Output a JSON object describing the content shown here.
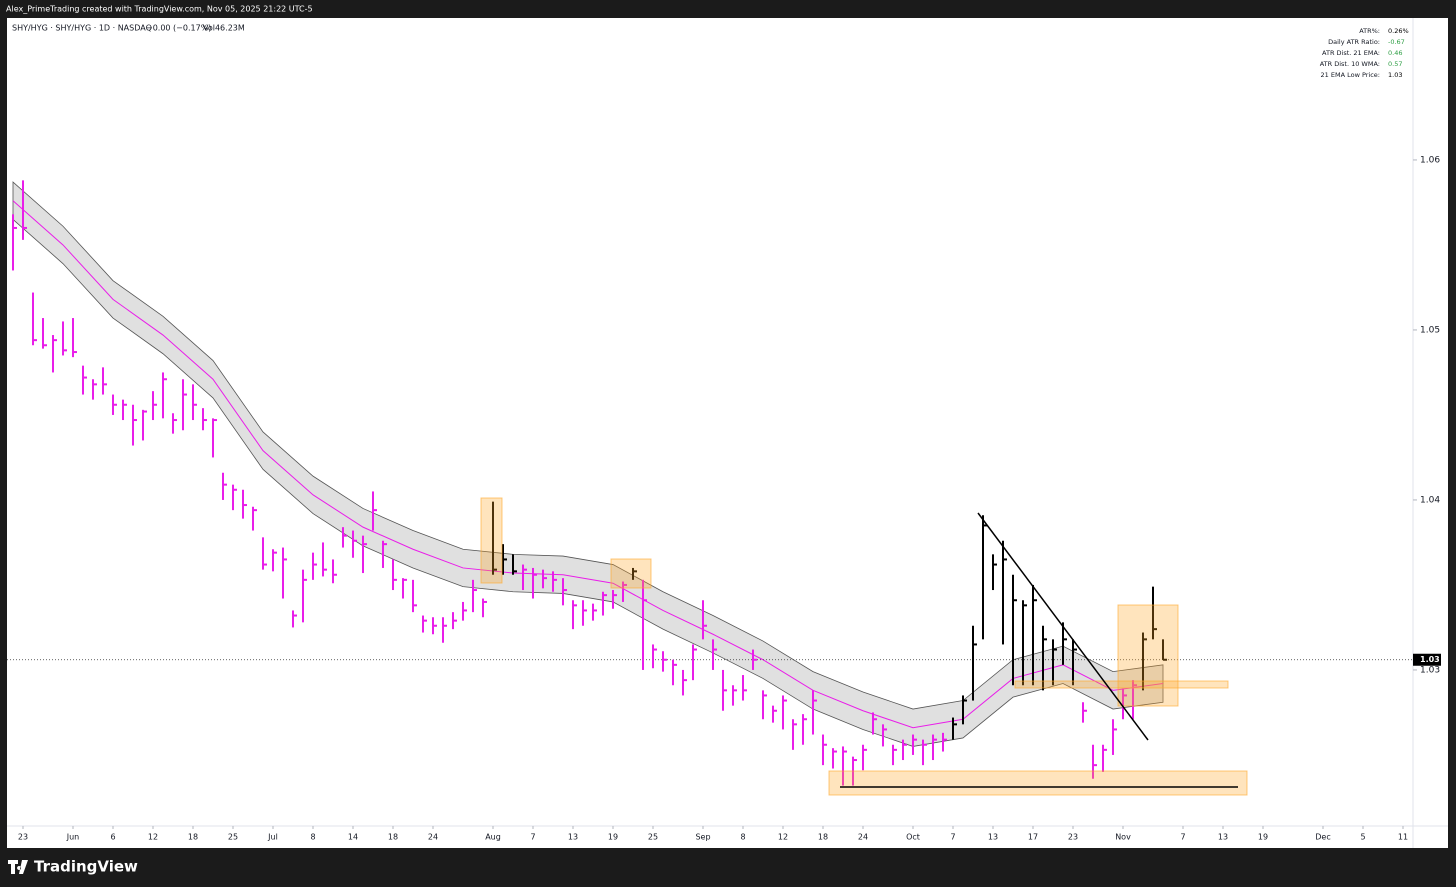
{
  "header": {
    "credit": "Alex_PrimeTrading created with TradingView.com, Nov 05, 2025 21:22 UTC-5"
  },
  "chart_data": {
    "type": "ohlc",
    "title": "SHY/HYG · SHY/HYG · 1D · NASDAQ",
    "change": "−0.00 (−0.17%)",
    "volume": "Vol46.23M",
    "x": [
      0,
      1,
      2,
      3,
      4,
      5,
      6,
      7,
      8,
      9,
      10,
      11,
      12,
      13,
      14,
      15,
      16,
      17,
      18,
      19,
      20,
      21,
      22,
      23,
      24,
      25,
      26,
      27,
      28,
      29,
      30,
      31,
      32,
      33,
      34,
      35,
      36,
      37,
      38,
      39,
      40,
      41,
      42,
      43,
      44,
      45,
      46,
      47,
      48,
      49,
      50,
      51,
      52,
      53,
      54,
      55,
      56,
      57,
      58,
      59,
      60,
      61,
      62,
      63,
      64,
      65,
      66,
      67,
      68,
      69,
      70,
      71,
      72,
      73,
      74,
      75,
      76,
      77,
      78,
      79,
      80,
      81,
      82,
      83,
      84,
      85,
      86,
      87,
      88,
      89,
      90,
      91,
      92,
      93,
      94,
      95,
      96,
      97,
      98,
      99,
      100,
      101,
      102,
      103,
      104,
      105,
      106,
      107,
      108,
      109,
      110,
      111,
      112,
      113,
      114,
      115
    ],
    "high": [
      1.0568,
      1.0588,
      1.0522,
      1.0507,
      1.0497,
      1.0505,
      1.0507,
      1.0479,
      1.0471,
      1.0478,
      1.0462,
      1.0459,
      1.0456,
      1.0453,
      1.0464,
      1.0475,
      1.0451,
      1.0471,
      1.0468,
      1.0454,
      1.0448,
      1.0416,
      1.0409,
      1.0406,
      1.0396,
      1.0378,
      1.0371,
      1.0372,
      1.0335,
      1.0359,
      1.0369,
      1.0375,
      1.0365,
      1.0384,
      1.0382,
      1.0379,
      1.0405,
      1.0376,
      1.0365,
      1.0354,
      1.0353,
      1.0332,
      1.0331,
      1.0331,
      1.0334,
      1.034,
      1.0353,
      1.0342,
      1.0399,
      1.0374,
      1.0368,
      1.0362,
      1.036,
      1.0359,
      1.0358,
      1.0354,
      1.0341,
      1.0341,
      1.0339,
      1.0346,
      1.0347,
      1.0352,
      1.036,
      1.0353,
      1.0315,
      1.0311,
      1.0306,
      1.03,
      1.0315,
      1.0341,
      1.0318,
      1.03,
      1.0291,
      1.0297,
      1.0312,
      1.0288,
      1.0279,
      1.0285,
      1.0271,
      1.0274,
      1.0288,
      1.0262,
      1.0254,
      1.0255,
      1.0249,
      1.0256,
      1.0275,
      1.0268,
      1.0256,
      1.0259,
      1.0262,
      1.0259,
      1.0262,
      1.0263,
      1.0272,
      1.0285,
      1.0326,
      1.0391,
      1.0368,
      1.0376,
      1.0356,
      1.0341,
      1.035,
      1.0326,
      1.0318,
      1.0328,
      1.0318,
      1.0281,
      1.0256,
      1.0256,
      1.0271,
      1.0289,
      1.0294,
      1.0322,
      1.0349,
      1.0318
    ],
    "low": [
      1.0535,
      1.0553,
      1.0491,
      1.0489,
      1.0475,
      1.0485,
      1.0484,
      1.0462,
      1.0459,
      1.0462,
      1.045,
      1.0447,
      1.0432,
      1.0435,
      1.0447,
      1.0448,
      1.0439,
      1.0441,
      1.0447,
      1.0441,
      1.0425,
      1.04,
      1.0394,
      1.0389,
      1.0382,
      1.0359,
      1.0358,
      1.0342,
      1.0325,
      1.0328,
      1.0353,
      1.0355,
      1.0351,
      1.0372,
      1.0366,
      1.0357,
      1.0382,
      1.036,
      1.0347,
      1.0342,
      1.0334,
      1.0322,
      1.0321,
      1.0316,
      1.0324,
      1.0329,
      1.0334,
      1.0331,
      1.0356,
      1.0356,
      1.0356,
      1.0347,
      1.0342,
      1.0348,
      1.0346,
      1.0338,
      1.0324,
      1.0326,
      1.0329,
      1.0332,
      1.0336,
      1.034,
      1.0353,
      1.03,
      1.0301,
      1.0299,
      1.0291,
      1.0285,
      1.0294,
      1.0318,
      1.03,
      1.0276,
      1.0279,
      1.0282,
      1.03,
      1.0271,
      1.0269,
      1.0265,
      1.0253,
      1.0256,
      1.0262,
      1.0244,
      1.0242,
      1.0232,
      1.0232,
      1.0241,
      1.0262,
      1.0255,
      1.0244,
      1.0247,
      1.025,
      1.0244,
      1.0247,
      1.0252,
      1.0259,
      1.0268,
      1.0282,
      1.0318,
      1.0347,
      1.0315,
      1.0291,
      1.0291,
      1.0291,
      1.0288,
      1.0291,
      1.0303,
      1.0291,
      1.0269,
      1.0236,
      1.024,
      1.025,
      1.0271,
      1.0271,
      1.0288,
      1.0318,
      1.0306
    ],
    "close": [
      1.056,
      1.056,
      1.0494,
      1.0491,
      1.0494,
      1.0488,
      1.0487,
      1.0472,
      1.0468,
      1.0468,
      1.0456,
      1.0456,
      1.0447,
      1.0452,
      1.0456,
      1.0471,
      1.0447,
      1.0462,
      1.0456,
      1.0447,
      1.0447,
      1.0409,
      1.0406,
      1.0397,
      1.0394,
      1.0362,
      1.0369,
      1.0365,
      1.0332,
      1.0353,
      1.0362,
      1.0359,
      1.0356,
      1.0379,
      1.0376,
      1.0374,
      1.0394,
      1.0374,
      1.0353,
      1.0353,
      1.0338,
      1.0329,
      1.0326,
      1.0326,
      1.0329,
      1.0335,
      1.0347,
      1.034,
      1.0359,
      1.0365,
      1.0358,
      1.0359,
      1.0356,
      1.0354,
      1.0353,
      1.0347,
      1.0338,
      1.0335,
      1.0335,
      1.0344,
      1.0344,
      1.035,
      1.0358,
      1.0341,
      1.0312,
      1.0306,
      1.0303,
      1.0294,
      1.0312,
      1.0326,
      1.0312,
      1.0288,
      1.0288,
      1.0288,
      1.0306,
      1.0285,
      1.0276,
      1.0282,
      1.0268,
      1.0271,
      1.0282,
      1.0256,
      1.0252,
      1.0252,
      1.0247,
      1.0253,
      1.0271,
      1.0265,
      1.0253,
      1.0256,
      1.0259,
      1.0256,
      1.0259,
      1.0259,
      1.0268,
      1.0282,
      1.0315,
      1.0385,
      1.0362,
      1.0365,
      1.0341,
      1.0338,
      1.0341,
      1.0318,
      1.0312,
      1.0318,
      1.0312,
      1.0276,
      1.0244,
      1.0253,
      1.0265,
      1.0285,
      1.0291,
      1.0318,
      1.0324,
      1.0306
    ],
    "colors": [
      "#e91ee9",
      "#e91ee9",
      "#e91ee9",
      "#e91ee9",
      "#e91ee9",
      "#e91ee9",
      "#e91ee9",
      "#e91ee9",
      "#e91ee9",
      "#e91ee9",
      "#e91ee9",
      "#e91ee9",
      "#e91ee9",
      "#e91ee9",
      "#e91ee9",
      "#e91ee9",
      "#e91ee9",
      "#e91ee9",
      "#e91ee9",
      "#e91ee9",
      "#e91ee9",
      "#e91ee9",
      "#e91ee9",
      "#e91ee9",
      "#e91ee9",
      "#e91ee9",
      "#e91ee9",
      "#e91ee9",
      "#e91ee9",
      "#e91ee9",
      "#e91ee9",
      "#e91ee9",
      "#e91ee9",
      "#e91ee9",
      "#e91ee9",
      "#e91ee9",
      "#e91ee9",
      "#e91ee9",
      "#e91ee9",
      "#e91ee9",
      "#e91ee9",
      "#e91ee9",
      "#e91ee9",
      "#e91ee9",
      "#e91ee9",
      "#e91ee9",
      "#e91ee9",
      "#e91ee9",
      "#000000",
      "#000000",
      "#000000",
      "#e91ee9",
      "#e91ee9",
      "#e91ee9",
      "#e91ee9",
      "#e91ee9",
      "#e91ee9",
      "#e91ee9",
      "#e91ee9",
      "#e91ee9",
      "#e91ee9",
      "#e91ee9",
      "#000000",
      "#e91ee9",
      "#e91ee9",
      "#e91ee9",
      "#e91ee9",
      "#e91ee9",
      "#e91ee9",
      "#e91ee9",
      "#e91ee9",
      "#e91ee9",
      "#e91ee9",
      "#e91ee9",
      "#e91ee9",
      "#e91ee9",
      "#e91ee9",
      "#e91ee9",
      "#e91ee9",
      "#e91ee9",
      "#e91ee9",
      "#e91ee9",
      "#e91ee9",
      "#e91ee9",
      "#e91ee9",
      "#e91ee9",
      "#e91ee9",
      "#e91ee9",
      "#e91ee9",
      "#e91ee9",
      "#e91ee9",
      "#e91ee9",
      "#e91ee9",
      "#e91ee9",
      "#000000",
      "#000000",
      "#000000",
      "#000000",
      "#000000",
      "#000000",
      "#000000",
      "#000000",
      "#000000",
      "#000000",
      "#000000",
      "#000000",
      "#000000",
      "#e91ee9",
      "#e91ee9",
      "#e91ee9",
      "#e91ee9",
      "#e91ee9",
      "#e91ee9",
      "#000000",
      "#000000",
      "#000000"
    ],
    "ema": {
      "x": [
        0,
        5,
        10,
        15,
        20,
        25,
        30,
        35,
        40,
        45,
        50,
        55,
        60,
        65,
        70,
        75,
        80,
        85,
        90,
        95,
        100,
        105,
        110,
        115
      ],
      "values": [
        1.0576,
        1.055,
        1.0518,
        1.0497,
        1.0471,
        1.0429,
        1.0403,
        1.0384,
        1.0371,
        1.036,
        1.0357,
        1.0356,
        1.0351,
        1.0335,
        1.0321,
        1.0306,
        1.0288,
        1.0276,
        1.0266,
        1.0271,
        1.0295,
        1.0303,
        1.0288,
        1.0292
      ],
      "color": "#e91ee9",
      "band": 0.0011,
      "band_color": "#d6d6d6"
    },
    "last_price": {
      "value": 1.0306,
      "label": "1.03"
    },
    "xlim": [
      -0.6,
      140
    ],
    "xticks": [
      {
        "value": 1,
        "label": "23"
      },
      {
        "value": 6,
        "label": "Jun"
      },
      {
        "value": 10,
        "label": "6"
      },
      {
        "value": 14,
        "label": "12"
      },
      {
        "value": 18,
        "label": "18"
      },
      {
        "value": 22,
        "label": "25"
      },
      {
        "value": 26,
        "label": "Jul"
      },
      {
        "value": 30,
        "label": "8"
      },
      {
        "value": 34,
        "label": "14"
      },
      {
        "value": 38,
        "label": "18"
      },
      {
        "value": 42,
        "label": "24"
      },
      {
        "value": 48,
        "label": "Aug"
      },
      {
        "value": 52,
        "label": "7"
      },
      {
        "value": 56,
        "label": "13"
      },
      {
        "value": 60,
        "label": "19"
      },
      {
        "value": 64,
        "label": "25"
      },
      {
        "value": 69,
        "label": "Sep"
      },
      {
        "value": 73,
        "label": "8"
      },
      {
        "value": 77,
        "label": "12"
      },
      {
        "value": 81,
        "label": "18"
      },
      {
        "value": 85,
        "label": "24"
      },
      {
        "value": 90,
        "label": "Oct"
      },
      {
        "value": 94,
        "label": "7"
      },
      {
        "value": 98,
        "label": "13"
      },
      {
        "value": 102,
        "label": "17"
      },
      {
        "value": 106,
        "label": "23"
      },
      {
        "value": 111,
        "label": "Nov"
      },
      {
        "value": 117,
        "label": "7"
      },
      {
        "value": 121,
        "label": "13"
      },
      {
        "value": 125,
        "label": "19"
      },
      {
        "value": 131,
        "label": "Dec"
      },
      {
        "value": 135,
        "label": "5"
      },
      {
        "value": 139,
        "label": "11"
      }
    ],
    "ylim": [
      1.02082,
      1.06835
    ],
    "yticks": [
      1.06,
      1.05,
      1.04,
      1.03
    ]
  },
  "indicator_table": {
    "rows": [
      {
        "label": "ATR%:",
        "value": "0.26%",
        "color": "#000000"
      },
      {
        "label": "Daily ATR Ratio:",
        "value": "-0.67",
        "color": "#2e9e44"
      },
      {
        "label": "ATR Dist. 21 EMA:",
        "value": "0.46",
        "color": "#2e9e44"
      },
      {
        "label": "ATR Dist. 10 WMA:",
        "value": "0.57",
        "color": "#2e9e44"
      },
      {
        "label": "21 EMA Low Price:",
        "value": "1.03",
        "color": "#000000"
      }
    ]
  },
  "footer": {
    "brand": "TradingView"
  }
}
